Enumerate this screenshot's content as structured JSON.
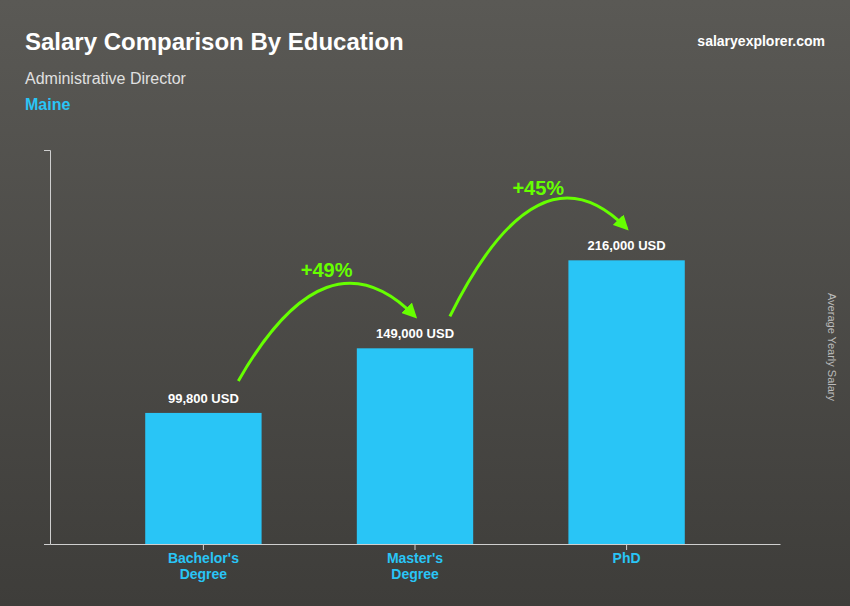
{
  "chart_data": {
    "type": "bar",
    "title": "Salary Comparison By Education",
    "subtitle": [
      "Administrative Director",
      "Maine"
    ],
    "source": "salaryexplorer.com",
    "ylabel": "Average Yearly Salary",
    "categories": [
      "Bachelor's\nDegree",
      "Master's\nDegree",
      "PhD"
    ],
    "values": [
      99800,
      149000,
      216000
    ],
    "value_labels": [
      "99,800 USD",
      "149,000 USD",
      "216,000 USD"
    ],
    "data_labels": true,
    "annotations": [
      "+49%",
      "+45%"
    ],
    "color": "#29C5F6",
    "ylim": [
      0,
      300000
    ],
    "tick_labels": "x",
    "grid": false
  }
}
